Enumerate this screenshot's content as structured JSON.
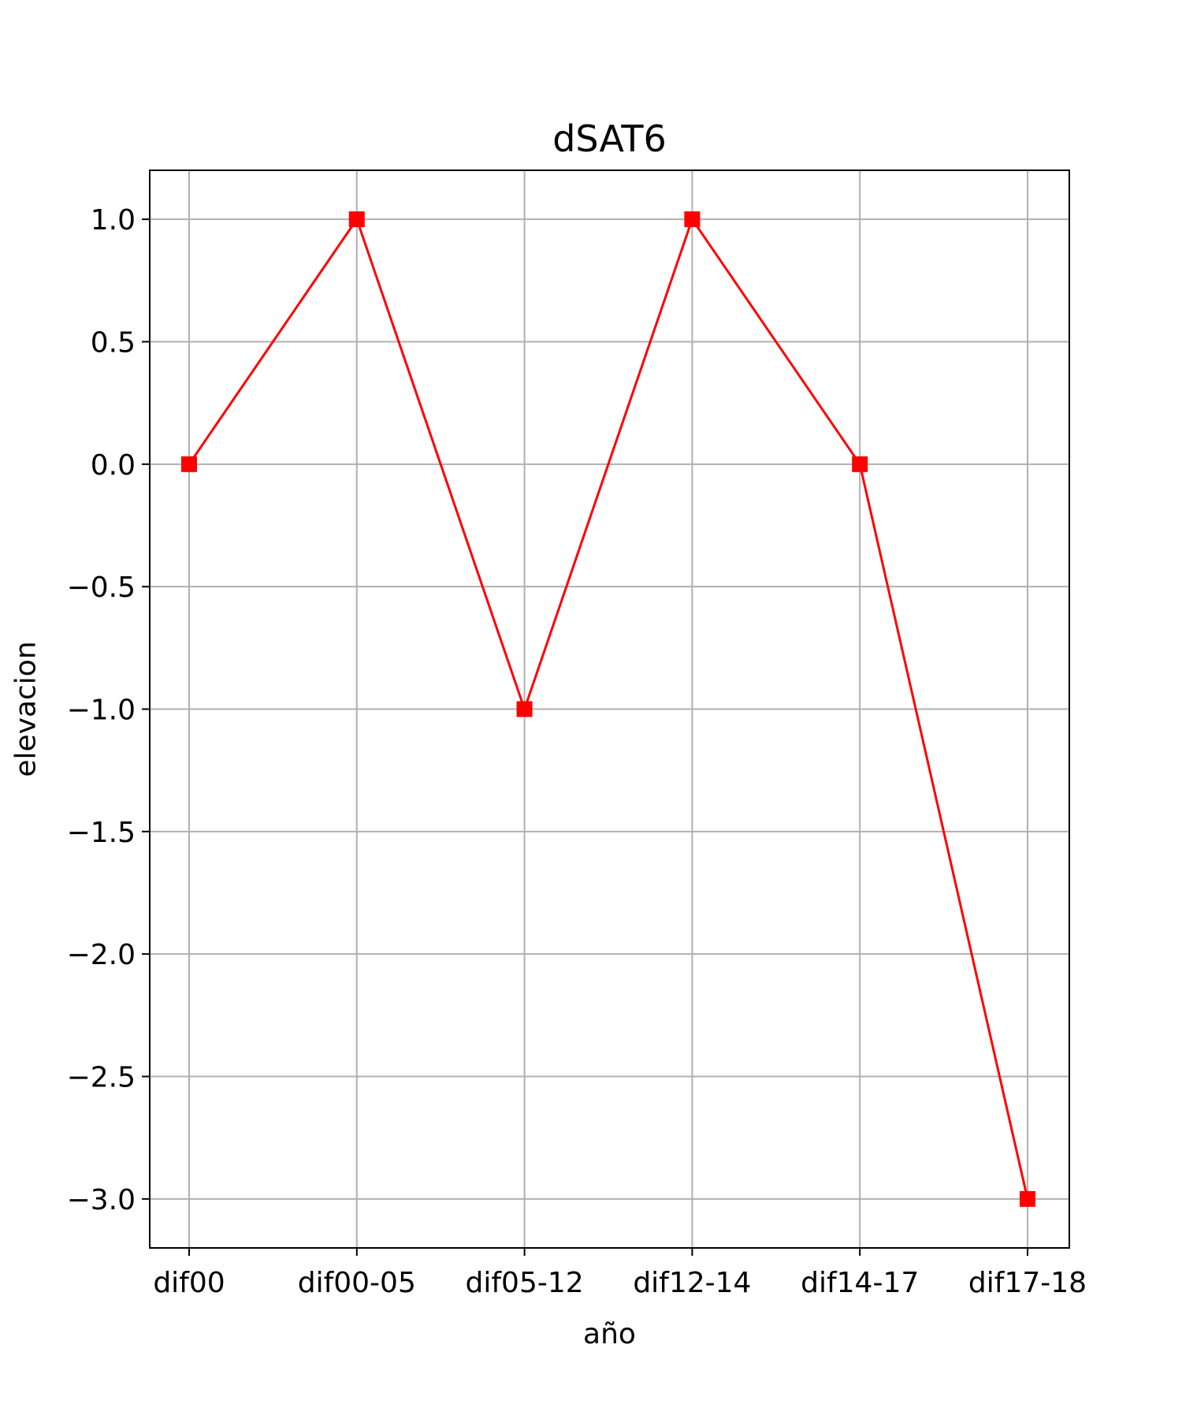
{
  "chart_data": {
    "type": "line",
    "title": "dSAT6",
    "xlabel": "año",
    "ylabel": "elevacion",
    "categories": [
      "dif00",
      "dif00-05",
      "dif05-12",
      "dif12-14",
      "dif14-17",
      "dif17-18"
    ],
    "series": [
      {
        "values": [
          0,
          1,
          -1,
          1,
          0,
          -3
        ],
        "color": "#ff0000",
        "marker": "square"
      }
    ],
    "ylim": [
      -3.2,
      1.2
    ],
    "yticks": [
      1.0,
      0.5,
      0.0,
      -0.5,
      -1.0,
      -1.5,
      -2.0,
      -2.5,
      -3.0
    ],
    "ytick_labels": [
      "1.0",
      "0.5",
      "0.0",
      "−0.5",
      "−1.0",
      "−1.5",
      "−2.0",
      "−2.5",
      "−3.0"
    ],
    "grid": true,
    "grid_color": "#b0b0b0"
  }
}
